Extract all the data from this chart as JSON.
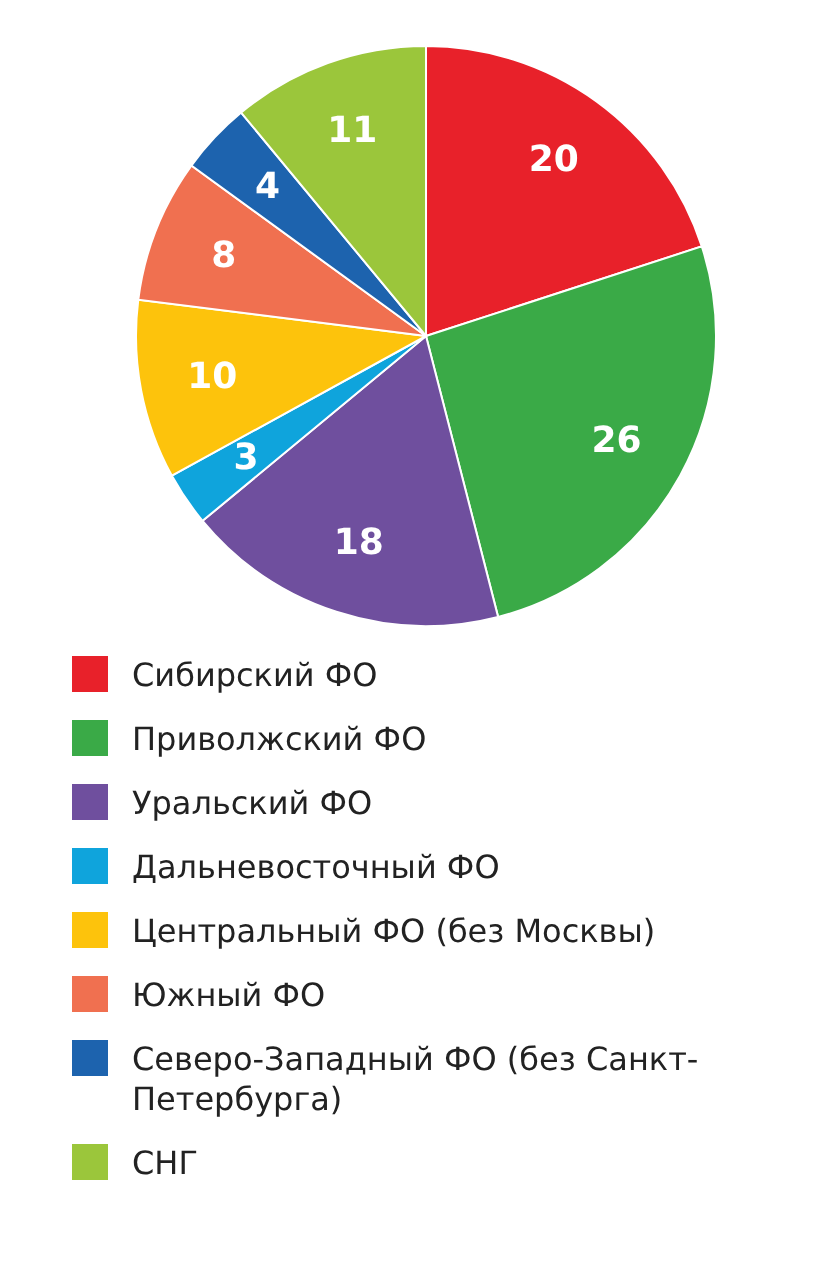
{
  "chart_data": {
    "type": "pie",
    "categories": [
      "Сибирский ФО",
      "Приволжский ФО",
      "Уральский ФО",
      "Дальневосточный ФО",
      "Центральный ФО (без Москвы)",
      "Южный ФО",
      "Северо-Западный ФО (без Санкт-Петербурга)",
      "СНГ"
    ],
    "values": [
      20,
      26,
      18,
      3,
      10,
      8,
      4,
      11
    ],
    "colors": [
      "#e8212a",
      "#3aaa47",
      "#6f4f9e",
      "#0fa4dc",
      "#fdc30c",
      "#f07050",
      "#1d63ae",
      "#9bc63b"
    ],
    "data_labels": true,
    "legend": "bottom"
  }
}
